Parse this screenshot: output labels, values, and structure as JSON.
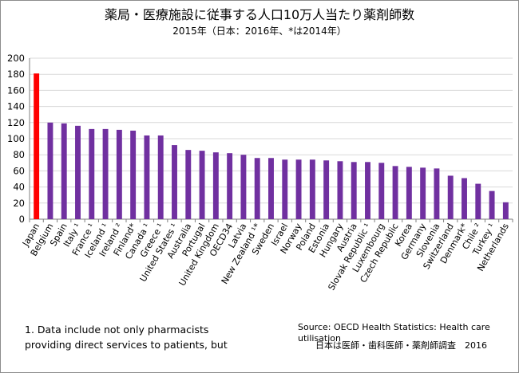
{
  "chart_data": {
    "type": "bar",
    "title": "薬局・医療施設に従事する人口10万人当たり薬剤師数",
    "subtitle": "2015年（日本：2016年、*は2014年）",
    "categories": [
      "Japan",
      "Belgium",
      "Spain",
      "Italy ¹",
      "France ¹",
      "Iceland ¹",
      "Ireland ²",
      "Finland*",
      "Canada ¹",
      "Greece ¹",
      "United States ¹",
      "Australia",
      "Portugal",
      "United Kingdom",
      "OECD34",
      "Latvia",
      "New Zealand ¹*",
      "Sweden",
      "Israel",
      "Norway",
      "Poland",
      "Estonia",
      "Hungary",
      "Austria",
      "Slovak Republic ¹",
      "Luxembourg",
      "Czech Republic",
      "Korea",
      "Germany",
      "Slovenia",
      "Switzerland",
      "Denmark*",
      "Chile ²",
      "Turkey ¹",
      "Netherlands"
    ],
    "values": [
      181,
      120,
      119,
      116,
      112,
      112,
      111,
      110,
      104,
      104,
      92,
      86,
      85,
      83,
      82,
      80,
      76,
      76,
      74,
      74,
      74,
      73,
      72,
      71,
      71,
      70,
      66,
      65,
      64,
      63,
      54,
      51,
      44,
      35,
      21
    ],
    "ylim": [
      0,
      200
    ],
    "yticks": [
      0,
      20,
      40,
      60,
      80,
      100,
      120,
      140,
      160,
      180,
      200
    ],
    "grid": true,
    "legend": "none",
    "colors": {
      "default": "#7030a0",
      "highlight": "#ff0000",
      "highlight_category": "Japan",
      "grid": "#d9d9d9"
    }
  },
  "footnote_lines": [
    "1. Data include not only pharmacists",
    "providing direct services to patients, but"
  ],
  "source": "Source: OECD Health Statistics: Health care utilisation",
  "japan_source": "日本は医師・歯科医師・薬剤師調査　2016"
}
